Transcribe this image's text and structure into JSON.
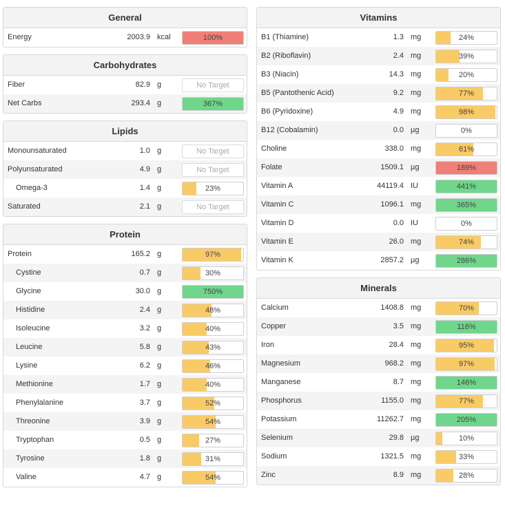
{
  "colors": {
    "yellow": "#f9cb66",
    "green": "#6fd68b",
    "red": "#ef7f77"
  },
  "left": [
    {
      "title": "General",
      "rows": [
        {
          "name": "Energy",
          "amount": "2003.9",
          "unit": "kcal",
          "pct": "100%",
          "fill": 1.0,
          "color": "red"
        }
      ]
    },
    {
      "title": "Carbohydrates",
      "rows": [
        {
          "name": "Fiber",
          "amount": "82.9",
          "unit": "g",
          "pct": "No Target",
          "fill": 0,
          "color": "none"
        },
        {
          "name": "Net Carbs",
          "amount": "293.4",
          "unit": "g",
          "pct": "367%",
          "fill": 1.0,
          "color": "green"
        }
      ]
    },
    {
      "title": "Lipids",
      "rows": [
        {
          "name": "Monounsaturated",
          "amount": "1.0",
          "unit": "g",
          "pct": "No Target",
          "fill": 0,
          "color": "none"
        },
        {
          "name": "Polyunsaturated",
          "amount": "4.9",
          "unit": "g",
          "pct": "No Target",
          "fill": 0,
          "color": "none"
        },
        {
          "name": "Omega-3",
          "indent": true,
          "amount": "1.4",
          "unit": "g",
          "pct": "23%",
          "fill": 0.23,
          "color": "yellow"
        },
        {
          "name": "Saturated",
          "amount": "2.1",
          "unit": "g",
          "pct": "No Target",
          "fill": 0,
          "color": "none"
        }
      ]
    },
    {
      "title": "Protein",
      "rows": [
        {
          "name": "Protein",
          "amount": "165.2",
          "unit": "g",
          "pct": "97%",
          "fill": 0.97,
          "color": "yellow"
        },
        {
          "name": "Cystine",
          "indent": true,
          "amount": "0.7",
          "unit": "g",
          "pct": "30%",
          "fill": 0.3,
          "color": "yellow"
        },
        {
          "name": "Glycine",
          "indent": true,
          "amount": "30.0",
          "unit": "g",
          "pct": "750%",
          "fill": 1.0,
          "color": "green"
        },
        {
          "name": "Histidine",
          "indent": true,
          "amount": "2.4",
          "unit": "g",
          "pct": "48%",
          "fill": 0.48,
          "color": "yellow"
        },
        {
          "name": "Isoleucine",
          "indent": true,
          "amount": "3.2",
          "unit": "g",
          "pct": "40%",
          "fill": 0.4,
          "color": "yellow"
        },
        {
          "name": "Leucine",
          "indent": true,
          "amount": "5.8",
          "unit": "g",
          "pct": "43%",
          "fill": 0.43,
          "color": "yellow"
        },
        {
          "name": "Lysine",
          "indent": true,
          "amount": "6.2",
          "unit": "g",
          "pct": "46%",
          "fill": 0.46,
          "color": "yellow"
        },
        {
          "name": "Methionine",
          "indent": true,
          "amount": "1.7",
          "unit": "g",
          "pct": "40%",
          "fill": 0.4,
          "color": "yellow"
        },
        {
          "name": "Phenylalanine",
          "indent": true,
          "amount": "3.7",
          "unit": "g",
          "pct": "52%",
          "fill": 0.52,
          "color": "yellow"
        },
        {
          "name": "Threonine",
          "indent": true,
          "amount": "3.9",
          "unit": "g",
          "pct": "54%",
          "fill": 0.54,
          "color": "yellow"
        },
        {
          "name": "Tryptophan",
          "indent": true,
          "amount": "0.5",
          "unit": "g",
          "pct": "27%",
          "fill": 0.27,
          "color": "yellow"
        },
        {
          "name": "Tyrosine",
          "indent": true,
          "amount": "1.8",
          "unit": "g",
          "pct": "31%",
          "fill": 0.31,
          "color": "yellow"
        },
        {
          "name": "Valine",
          "indent": true,
          "amount": "4.7",
          "unit": "g",
          "pct": "54%",
          "fill": 0.54,
          "color": "yellow"
        }
      ]
    }
  ],
  "right": [
    {
      "title": "Vitamins",
      "rows": [
        {
          "name": "B1 (Thiamine)",
          "amount": "1.3",
          "unit": "mg",
          "pct": "24%",
          "fill": 0.24,
          "color": "yellow"
        },
        {
          "name": "B2 (Riboflavin)",
          "amount": "2.4",
          "unit": "mg",
          "pct": "39%",
          "fill": 0.39,
          "color": "yellow"
        },
        {
          "name": "B3 (Niacin)",
          "amount": "14.3",
          "unit": "mg",
          "pct": "20%",
          "fill": 0.2,
          "color": "yellow"
        },
        {
          "name": "B5 (Pantothenic Acid)",
          "amount": "9.2",
          "unit": "mg",
          "pct": "77%",
          "fill": 0.77,
          "color": "yellow"
        },
        {
          "name": "B6 (Pyridoxine)",
          "amount": "4.9",
          "unit": "mg",
          "pct": "98%",
          "fill": 0.98,
          "color": "yellow"
        },
        {
          "name": "B12 (Cobalamin)",
          "amount": "0.0",
          "unit": "µg",
          "pct": "0%",
          "fill": 0,
          "color": "yellow"
        },
        {
          "name": "Choline",
          "amount": "338.0",
          "unit": "mg",
          "pct": "61%",
          "fill": 0.61,
          "color": "yellow"
        },
        {
          "name": "Folate",
          "amount": "1509.1",
          "unit": "µg",
          "pct": "189%",
          "fill": 1.0,
          "color": "red"
        },
        {
          "name": "Vitamin A",
          "amount": "44119.4",
          "unit": "IU",
          "pct": "441%",
          "fill": 1.0,
          "color": "green"
        },
        {
          "name": "Vitamin C",
          "amount": "1096.1",
          "unit": "mg",
          "pct": "365%",
          "fill": 1.0,
          "color": "green"
        },
        {
          "name": "Vitamin D",
          "amount": "0.0",
          "unit": "IU",
          "pct": "0%",
          "fill": 0,
          "color": "yellow"
        },
        {
          "name": "Vitamin E",
          "amount": "26.0",
          "unit": "mg",
          "pct": "74%",
          "fill": 0.74,
          "color": "yellow"
        },
        {
          "name": "Vitamin K",
          "amount": "2857.2",
          "unit": "µg",
          "pct": "286%",
          "fill": 1.0,
          "color": "green"
        }
      ]
    },
    {
      "title": "Minerals",
      "rows": [
        {
          "name": "Calcium",
          "amount": "1408.8",
          "unit": "mg",
          "pct": "70%",
          "fill": 0.7,
          "color": "yellow"
        },
        {
          "name": "Copper",
          "amount": "3.5",
          "unit": "mg",
          "pct": "116%",
          "fill": 1.0,
          "color": "green"
        },
        {
          "name": "Iron",
          "amount": "28.4",
          "unit": "mg",
          "pct": "95%",
          "fill": 0.95,
          "color": "yellow"
        },
        {
          "name": "Magnesium",
          "amount": "968.2",
          "unit": "mg",
          "pct": "97%",
          "fill": 0.97,
          "color": "yellow"
        },
        {
          "name": "Manganese",
          "amount": "8.7",
          "unit": "mg",
          "pct": "146%",
          "fill": 1.0,
          "color": "green"
        },
        {
          "name": "Phosphorus",
          "amount": "1155.0",
          "unit": "mg",
          "pct": "77%",
          "fill": 0.77,
          "color": "yellow"
        },
        {
          "name": "Potassium",
          "amount": "11262.7",
          "unit": "mg",
          "pct": "205%",
          "fill": 1.0,
          "color": "green"
        },
        {
          "name": "Selenium",
          "amount": "29.8",
          "unit": "µg",
          "pct": "10%",
          "fill": 0.1,
          "color": "yellow"
        },
        {
          "name": "Sodium",
          "amount": "1321.5",
          "unit": "mg",
          "pct": "33%",
          "fill": 0.33,
          "color": "yellow"
        },
        {
          "name": "Zinc",
          "amount": "8.9",
          "unit": "mg",
          "pct": "28%",
          "fill": 0.28,
          "color": "yellow"
        }
      ]
    }
  ]
}
